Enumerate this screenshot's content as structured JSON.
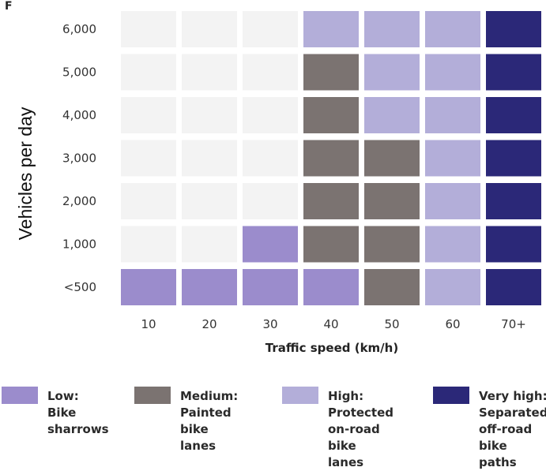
{
  "chart_data": {
    "type": "heatmap",
    "title": "",
    "xlabel": "Traffic speed (km/h)",
    "ylabel": "Vehicles per day",
    "x_categories": [
      "10",
      "20",
      "30",
      "40",
      "50",
      "60",
      "70+"
    ],
    "y_categories": [
      "6,000",
      "5,000",
      "4,000",
      "3,000",
      "2,000",
      "1,000",
      "<500"
    ],
    "levels": [
      "None",
      "Low",
      "Medium",
      "High",
      "Very high"
    ],
    "grid": [
      [
        0,
        0,
        0,
        3,
        3,
        3,
        4
      ],
      [
        0,
        0,
        0,
        2,
        3,
        3,
        4
      ],
      [
        0,
        0,
        0,
        2,
        3,
        3,
        4
      ],
      [
        0,
        0,
        0,
        2,
        2,
        3,
        4
      ],
      [
        0,
        0,
        0,
        2,
        2,
        3,
        4
      ],
      [
        0,
        0,
        1,
        2,
        2,
        3,
        4
      ],
      [
        1,
        1,
        1,
        1,
        2,
        3,
        4
      ]
    ],
    "colors": [
      "#f3f3f3",
      "#9b8ccc",
      "#7b7371",
      "#b3aed9",
      "#2b2878"
    ],
    "legend": [
      {
        "level": 1,
        "title": "Low:",
        "desc": "Bike\nsharrows"
      },
      {
        "level": 2,
        "title": "Medium:",
        "desc": "Painted\nbike lanes"
      },
      {
        "level": 3,
        "title": "High:",
        "desc": "Protected\non-road\nbike lanes"
      },
      {
        "level": 4,
        "title": "Very high:",
        "desc": "Separated\noff-road\nbike paths"
      }
    ]
  },
  "corner_glyph": "F"
}
